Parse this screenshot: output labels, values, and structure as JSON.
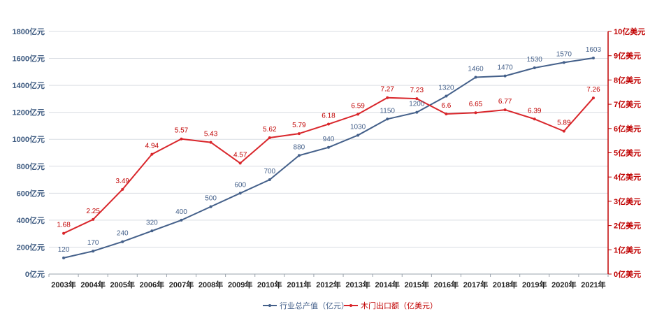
{
  "chart_data": {
    "type": "line",
    "categories": [
      "2003年",
      "2004年",
      "2005年",
      "2006年",
      "2007年",
      "2008年",
      "2009年",
      "2010年",
      "2011年",
      "2012年",
      "2013年",
      "2014年",
      "2015年",
      "2016年",
      "2017年",
      "2018年",
      "2019年",
      "2020年",
      "2021年"
    ],
    "series": [
      {
        "name": "行业总产值（亿元）",
        "axis": "left",
        "color": "#44608a",
        "values": [
          120,
          170,
          240,
          320,
          400,
          500,
          600,
          700,
          880,
          940,
          1030,
          1150,
          1200,
          1320,
          1460,
          1470,
          1530,
          1570,
          1603
        ],
        "labels": [
          "120",
          "170",
          "240",
          "320",
          "400",
          "500",
          "600",
          "700",
          "880",
          "940",
          "1030",
          "1150",
          "1200",
          "1320",
          "1460",
          "1470",
          "1530",
          "1570",
          "1603"
        ]
      },
      {
        "name": "木门出口额（亿美元）",
        "axis": "right",
        "color": "#d9262b",
        "values": [
          1.68,
          2.25,
          3.49,
          4.94,
          5.57,
          5.43,
          4.57,
          5.62,
          5.79,
          6.18,
          6.59,
          7.27,
          7.23,
          6.6,
          6.65,
          6.77,
          6.39,
          5.89,
          7.26
        ],
        "labels": [
          "1.68",
          "2.25",
          "3.49",
          "4.94",
          "5.57",
          "5.43",
          "4.57",
          "5.62",
          "5.79",
          "6.18",
          "6.59",
          "7.27",
          "7.23",
          "6.6",
          "6.65",
          "6.77",
          "6.39",
          "5.89",
          "7.26"
        ]
      }
    ],
    "y_left": {
      "ylim": [
        0,
        1800
      ],
      "ticks": [
        "0亿元",
        "200亿元",
        "400亿元",
        "600亿元",
        "800亿元",
        "1000亿元",
        "1200亿元",
        "1400亿元",
        "1600亿元",
        "1800亿元"
      ],
      "color": "#3d5a80"
    },
    "y_right": {
      "ylim": [
        0,
        10
      ],
      "ticks": [
        "0亿美元",
        "1亿美元",
        "2亿美元",
        "3亿美元",
        "4亿美元",
        "5亿美元",
        "6亿美元",
        "7亿美元",
        "8亿美元",
        "9亿美元",
        "10亿美元"
      ],
      "color": "#c00000"
    },
    "grid": true,
    "legend": "bottom-center"
  }
}
